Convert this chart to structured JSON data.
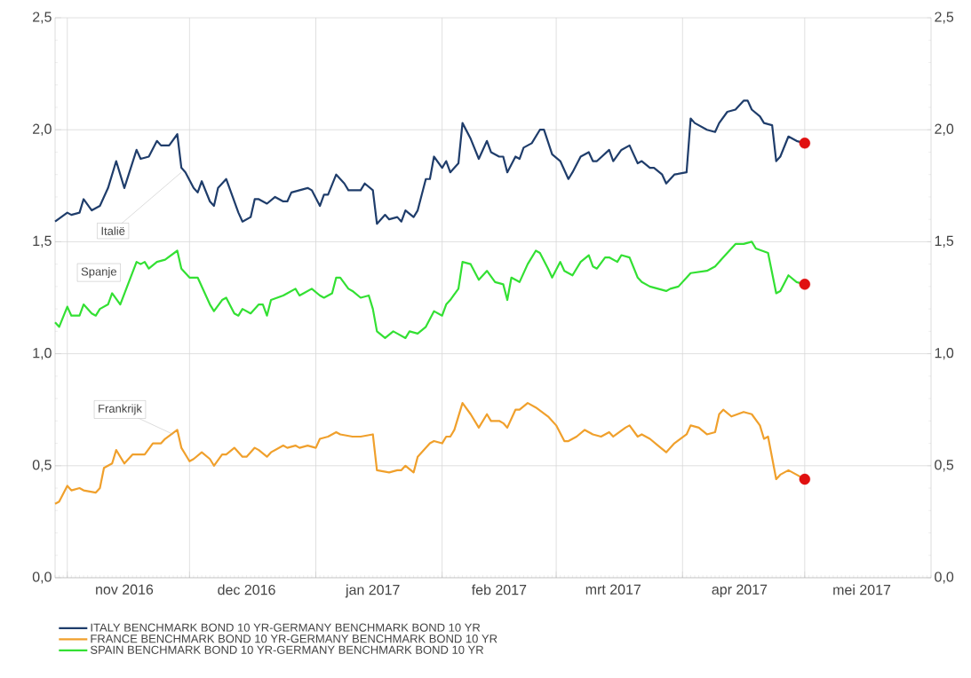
{
  "chart_data": {
    "type": "line",
    "xlim": [
      "2016-10-29",
      "2017-06-01"
    ],
    "xticks": [
      {
        "value": "2016-11-01",
        "label": null
      },
      {
        "value": "2016-12-01",
        "label": null
      },
      {
        "value": "2017-01-01",
        "label": null
      },
      {
        "value": "2017-02-01",
        "label": null
      },
      {
        "value": "2017-03-01",
        "label": null
      },
      {
        "value": "2017-04-01",
        "label": null
      },
      {
        "value": "2017-05-01",
        "label": null
      },
      {
        "value": "2016-11-15",
        "label": "nov 2016"
      },
      {
        "value": "2016-12-15",
        "label": "dec 2016"
      },
      {
        "value": "2017-01-15",
        "label": "jan 2017"
      },
      {
        "value": "2017-02-15",
        "label": "feb 2017"
      },
      {
        "value": "2017-03-15",
        "label": "mrt 2017"
      },
      {
        "value": "2017-04-15",
        "label": "apr 2017"
      },
      {
        "value": "2017-05-15",
        "label": "mei 2017"
      }
    ],
    "ylim": [
      0,
      2.5
    ],
    "yticks": [
      {
        "value": 0,
        "label": "0,0"
      },
      {
        "value": 0.5,
        "label": "0,5"
      },
      {
        "value": 1,
        "label": "1,0"
      },
      {
        "value": 1.5,
        "label": "1,5"
      },
      {
        "value": 2,
        "label": "2,0"
      },
      {
        "value": 2.5,
        "label": "2,5"
      }
    ],
    "y2lim": [
      0,
      2.5
    ],
    "y2ticks": [
      {
        "value": 0,
        "label": "0,0"
      },
      {
        "value": 0.5,
        "label": "0,5"
      },
      {
        "value": 1,
        "label": "1,0"
      },
      {
        "value": 1.5,
        "label": "1,5"
      },
      {
        "value": 2,
        "label": "2,0"
      },
      {
        "value": 2.5,
        "label": "2,5"
      }
    ],
    "grid": true,
    "legend": "bottom",
    "line_style": "solid",
    "annotations": [
      {
        "text": "Italië",
        "x": "2016-11-29",
        "y": 1.81
      },
      "Spanje",
      {
        "text": "Frankrijk",
        "x": "2016-11-27",
        "y": 0.64
      }
    ],
    "series": [
      {
        "name": "ITALY BENCHMARK BOND 10 YR-GERMANY BENCHMARK BOND 10 YR",
        "color": "#1f3d6b",
        "x": [
          "2016-10-29",
          "2016-11-01",
          "2016-11-02",
          "2016-11-04",
          "2016-11-05",
          "2016-11-07",
          "2016-11-09",
          "2016-11-11",
          "2016-11-13",
          "2016-11-15",
          "2016-11-18",
          "2016-11-19",
          "2016-11-21",
          "2016-11-23",
          "2016-11-24",
          "2016-11-26",
          "2016-11-28",
          "2016-11-29",
          "2016-11-30",
          "2016-12-02",
          "2016-12-03",
          "2016-12-04",
          "2016-12-06",
          "2016-12-07",
          "2016-12-08",
          "2016-12-10",
          "2016-12-13",
          "2016-12-14",
          "2016-12-16",
          "2016-12-17",
          "2016-12-18",
          "2016-12-20",
          "2016-12-22",
          "2016-12-24",
          "2016-12-25",
          "2016-12-26",
          "2016-12-28",
          "2016-12-30",
          "2016-12-31",
          "2017-01-02",
          "2017-01-03",
          "2017-01-04",
          "2017-01-06",
          "2017-01-08",
          "2017-01-09",
          "2017-01-12",
          "2017-01-13",
          "2017-01-15",
          "2017-01-16",
          "2017-01-18",
          "2017-01-19",
          "2017-01-21",
          "2017-01-22",
          "2017-01-23",
          "2017-01-25",
          "2017-01-26",
          "2017-01-28",
          "2017-01-29",
          "2017-01-30",
          "2017-02-01",
          "2017-02-02",
          "2017-02-03",
          "2017-02-05",
          "2017-02-06",
          "2017-02-08",
          "2017-02-10",
          "2017-02-12",
          "2017-02-13",
          "2017-02-15",
          "2017-02-16",
          "2017-02-17",
          "2017-02-19",
          "2017-02-20",
          "2017-02-21",
          "2017-02-23",
          "2017-02-25",
          "2017-02-26",
          "2017-02-28",
          "2017-03-02",
          "2017-03-04",
          "2017-03-05",
          "2017-03-07",
          "2017-03-09",
          "2017-03-10",
          "2017-03-11",
          "2017-03-14",
          "2017-03-15",
          "2017-03-17",
          "2017-03-19",
          "2017-03-21",
          "2017-03-22",
          "2017-03-24",
          "2017-03-25",
          "2017-03-27",
          "2017-03-28",
          "2017-03-30",
          "2017-04-02",
          "2017-04-03",
          "2017-04-04",
          "2017-04-07",
          "2017-04-09",
          "2017-04-10",
          "2017-04-12",
          "2017-04-14",
          "2017-04-16",
          "2017-04-17",
          "2017-04-18",
          "2017-04-20",
          "2017-04-21",
          "2017-04-23",
          "2017-04-24",
          "2017-04-25",
          "2017-04-27",
          "2017-04-29",
          "2017-05-01"
        ],
        "values": [
          1.59,
          1.63,
          1.62,
          1.63,
          1.69,
          1.64,
          1.66,
          1.74,
          1.86,
          1.74,
          1.91,
          1.87,
          1.88,
          1.95,
          1.93,
          1.93,
          1.98,
          1.83,
          1.81,
          1.74,
          1.72,
          1.77,
          1.68,
          1.66,
          1.74,
          1.78,
          1.63,
          1.59,
          1.61,
          1.69,
          1.69,
          1.67,
          1.7,
          1.68,
          1.68,
          1.72,
          1.73,
          1.74,
          1.73,
          1.66,
          1.71,
          1.71,
          1.8,
          1.76,
          1.73,
          1.73,
          1.76,
          1.73,
          1.58,
          1.62,
          1.6,
          1.61,
          1.59,
          1.64,
          1.61,
          1.64,
          1.78,
          1.78,
          1.88,
          1.83,
          1.86,
          1.81,
          1.85,
          2.03,
          1.96,
          1.87,
          1.95,
          1.9,
          1.88,
          1.88,
          1.81,
          1.88,
          1.87,
          1.92,
          1.94,
          2.0,
          2.0,
          1.89,
          1.86,
          1.78,
          1.81,
          1.88,
          1.9,
          1.86,
          1.86,
          1.91,
          1.86,
          1.91,
          1.93,
          1.85,
          1.86,
          1.83,
          1.83,
          1.8,
          1.76,
          1.8,
          1.81,
          2.05,
          2.03,
          2.0,
          1.99,
          2.03,
          2.08,
          2.09,
          2.13,
          2.13,
          2.09,
          2.06,
          2.03,
          2.02,
          1.86,
          1.88,
          1.97,
          1.95,
          1.94
        ]
      },
      {
        "name": "FRANCE BENCHMARK BOND 10 YR-GERMANY BENCHMARK BOND 10 YR",
        "color": "#f0a02c",
        "x": [
          "2016-10-29",
          "2016-10-30",
          "2016-11-01",
          "2016-11-02",
          "2016-11-04",
          "2016-11-05",
          "2016-11-08",
          "2016-11-09",
          "2016-11-10",
          "2016-11-12",
          "2016-11-13",
          "2016-11-15",
          "2016-11-17",
          "2016-11-20",
          "2016-11-22",
          "2016-11-24",
          "2016-11-25",
          "2016-11-28",
          "2016-11-29",
          "2016-12-01",
          "2016-12-02",
          "2016-12-04",
          "2016-12-06",
          "2016-12-07",
          "2016-12-09",
          "2016-12-10",
          "2016-12-12",
          "2016-12-14",
          "2016-12-15",
          "2016-12-17",
          "2016-12-18",
          "2016-12-20",
          "2016-12-21",
          "2016-12-24",
          "2016-12-25",
          "2016-12-27",
          "2016-12-28",
          "2016-12-30",
          "2017-01-01",
          "2017-01-02",
          "2017-01-04",
          "2017-01-06",
          "2017-01-07",
          "2017-01-10",
          "2017-01-12",
          "2017-01-15",
          "2017-01-16",
          "2017-01-19",
          "2017-01-21",
          "2017-01-22",
          "2017-01-23",
          "2017-01-25",
          "2017-01-26",
          "2017-01-29",
          "2017-01-30",
          "2017-02-01",
          "2017-02-02",
          "2017-02-03",
          "2017-02-04",
          "2017-02-06",
          "2017-02-08",
          "2017-02-10",
          "2017-02-12",
          "2017-02-13",
          "2017-02-15",
          "2017-02-16",
          "2017-02-17",
          "2017-02-19",
          "2017-02-20",
          "2017-02-22",
          "2017-02-24",
          "2017-02-27",
          "2017-03-01",
          "2017-03-03",
          "2017-03-04",
          "2017-03-06",
          "2017-03-08",
          "2017-03-10",
          "2017-03-12",
          "2017-03-14",
          "2017-03-15",
          "2017-03-18",
          "2017-03-19",
          "2017-03-21",
          "2017-03-22",
          "2017-03-24",
          "2017-03-26",
          "2017-03-28",
          "2017-03-30",
          "2017-04-02",
          "2017-04-03",
          "2017-04-05",
          "2017-04-07",
          "2017-04-09",
          "2017-04-10",
          "2017-04-11",
          "2017-04-13",
          "2017-04-16",
          "2017-04-18",
          "2017-04-20",
          "2017-04-21",
          "2017-04-22",
          "2017-04-24",
          "2017-04-25",
          "2017-04-27",
          "2017-04-29",
          "2017-05-01"
        ],
        "values": [
          0.33,
          0.34,
          0.41,
          0.39,
          0.4,
          0.39,
          0.38,
          0.4,
          0.49,
          0.51,
          0.57,
          0.51,
          0.55,
          0.55,
          0.6,
          0.6,
          0.62,
          0.66,
          0.58,
          0.52,
          0.53,
          0.56,
          0.53,
          0.5,
          0.55,
          0.55,
          0.58,
          0.54,
          0.54,
          0.58,
          0.57,
          0.54,
          0.56,
          0.59,
          0.58,
          0.59,
          0.58,
          0.59,
          0.58,
          0.62,
          0.63,
          0.65,
          0.64,
          0.63,
          0.63,
          0.64,
          0.48,
          0.47,
          0.48,
          0.48,
          0.5,
          0.47,
          0.54,
          0.6,
          0.61,
          0.6,
          0.63,
          0.63,
          0.66,
          0.78,
          0.73,
          0.67,
          0.73,
          0.7,
          0.7,
          0.69,
          0.67,
          0.75,
          0.75,
          0.78,
          0.76,
          0.72,
          0.68,
          0.61,
          0.61,
          0.63,
          0.66,
          0.64,
          0.63,
          0.65,
          0.63,
          0.67,
          0.68,
          0.63,
          0.64,
          0.62,
          0.59,
          0.56,
          0.6,
          0.64,
          0.68,
          0.67,
          0.64,
          0.65,
          0.73,
          0.75,
          0.72,
          0.74,
          0.73,
          0.68,
          0.62,
          0.63,
          0.44,
          0.46,
          0.48,
          0.46,
          0.44
        ]
      },
      {
        "name": "SPAIN BENCHMARK BOND 10 YR-GERMANY BENCHMARK BOND 10 YR",
        "color": "#33e033",
        "x": [
          "2016-10-29",
          "2016-10-30",
          "2016-11-01",
          "2016-11-02",
          "2016-11-04",
          "2016-11-05",
          "2016-11-07",
          "2016-11-08",
          "2016-11-09",
          "2016-11-11",
          "2016-11-12",
          "2016-11-14",
          "2016-11-18",
          "2016-11-19",
          "2016-11-20",
          "2016-11-21",
          "2016-11-23",
          "2016-11-25",
          "2016-11-28",
          "2016-11-29",
          "2016-11-30",
          "2016-12-01",
          "2016-12-03",
          "2016-12-06",
          "2016-12-07",
          "2016-12-09",
          "2016-12-10",
          "2016-12-12",
          "2016-12-13",
          "2016-12-14",
          "2016-12-16",
          "2016-12-18",
          "2016-12-19",
          "2016-12-20",
          "2016-12-21",
          "2016-12-24",
          "2016-12-25",
          "2016-12-27",
          "2016-12-28",
          "2016-12-29",
          "2016-12-31",
          "2017-01-02",
          "2017-01-03",
          "2017-01-05",
          "2017-01-06",
          "2017-01-07",
          "2017-01-09",
          "2017-01-10",
          "2017-01-12",
          "2017-01-14",
          "2017-01-15",
          "2017-01-16",
          "2017-01-18",
          "2017-01-20",
          "2017-01-21",
          "2017-01-23",
          "2017-01-24",
          "2017-01-26",
          "2017-01-28",
          "2017-01-30",
          "2017-02-01",
          "2017-02-02",
          "2017-02-03",
          "2017-02-05",
          "2017-02-06",
          "2017-02-08",
          "2017-02-10",
          "2017-02-12",
          "2017-02-14",
          "2017-02-16",
          "2017-02-17",
          "2017-02-18",
          "2017-02-20",
          "2017-02-22",
          "2017-02-24",
          "2017-02-25",
          "2017-02-27",
          "2017-02-28",
          "2017-03-02",
          "2017-03-03",
          "2017-03-05",
          "2017-03-07",
          "2017-03-09",
          "2017-03-10",
          "2017-03-11",
          "2017-03-13",
          "2017-03-14",
          "2017-03-16",
          "2017-03-17",
          "2017-03-19",
          "2017-03-21",
          "2017-03-22",
          "2017-03-24",
          "2017-03-26",
          "2017-03-28",
          "2017-03-29",
          "2017-03-31",
          "2017-04-03",
          "2017-04-07",
          "2017-04-09",
          "2017-04-11",
          "2017-04-14",
          "2017-04-16",
          "2017-04-18",
          "2017-04-19",
          "2017-04-22",
          "2017-04-24",
          "2017-04-25",
          "2017-04-27",
          "2017-04-29",
          "2017-05-01"
        ],
        "values": [
          1.14,
          1.12,
          1.21,
          1.17,
          1.17,
          1.22,
          1.18,
          1.17,
          1.2,
          1.22,
          1.27,
          1.22,
          1.41,
          1.4,
          1.41,
          1.38,
          1.41,
          1.42,
          1.46,
          1.38,
          1.36,
          1.34,
          1.34,
          1.22,
          1.19,
          1.24,
          1.25,
          1.18,
          1.17,
          1.2,
          1.18,
          1.22,
          1.22,
          1.17,
          1.24,
          1.26,
          1.27,
          1.29,
          1.26,
          1.27,
          1.29,
          1.26,
          1.25,
          1.27,
          1.34,
          1.34,
          1.29,
          1.28,
          1.25,
          1.26,
          1.2,
          1.1,
          1.07,
          1.1,
          1.09,
          1.07,
          1.1,
          1.09,
          1.12,
          1.19,
          1.17,
          1.22,
          1.24,
          1.29,
          1.41,
          1.4,
          1.33,
          1.37,
          1.32,
          1.31,
          1.24,
          1.34,
          1.32,
          1.4,
          1.46,
          1.45,
          1.38,
          1.34,
          1.41,
          1.37,
          1.35,
          1.41,
          1.44,
          1.39,
          1.38,
          1.43,
          1.43,
          1.41,
          1.44,
          1.43,
          1.34,
          1.32,
          1.3,
          1.29,
          1.28,
          1.29,
          1.3,
          1.36,
          1.37,
          1.39,
          1.43,
          1.49,
          1.49,
          1.5,
          1.47,
          1.45,
          1.27,
          1.28,
          1.35,
          1.32,
          1.31
        ]
      },
      {
        "type": "scatter",
        "marker": "circle",
        "color": "#e01010",
        "x": [
          "2017-05-01",
          "2017-05-01",
          "2017-05-01"
        ],
        "values": [
          1.94,
          0.44,
          1.31
        ]
      }
    ]
  }
}
